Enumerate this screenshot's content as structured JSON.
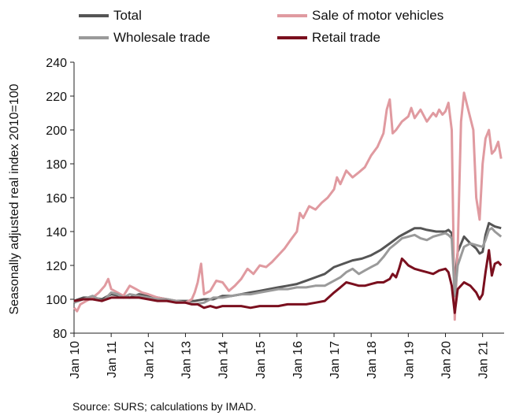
{
  "chart_data": {
    "type": "line",
    "ylabel": "Seasonally adjusted real index 2010=100",
    "ylim": [
      80,
      240
    ],
    "yticks": [
      80,
      100,
      120,
      140,
      160,
      180,
      200,
      220,
      240
    ],
    "xlim": [
      2010,
      2021.58
    ],
    "xticks": [
      {
        "label": "Jan 10",
        "x": 2010
      },
      {
        "label": "Jan 11",
        "x": 2011
      },
      {
        "label": "Jan 12",
        "x": 2012
      },
      {
        "label": "Jan 13",
        "x": 2013
      },
      {
        "label": "Jan 14",
        "x": 2014
      },
      {
        "label": "Jan 15",
        "x": 2015
      },
      {
        "label": "Jan 16",
        "x": 2016
      },
      {
        "label": "Jan 17",
        "x": 2017
      },
      {
        "label": "Jan 18",
        "x": 2018
      },
      {
        "label": "Jan 19",
        "x": 2019
      },
      {
        "label": "Jan 20",
        "x": 2020
      },
      {
        "label": "Jan 21",
        "x": 2021
      }
    ],
    "grid": false,
    "legend_position": "top",
    "series": [
      {
        "name": "Total",
        "color": "#555555",
        "points": [
          [
            2010,
            99
          ],
          [
            2010.25,
            101
          ],
          [
            2010.5,
            101
          ],
          [
            2010.75,
            100
          ],
          [
            2011,
            103
          ],
          [
            2011.25,
            102
          ],
          [
            2011.5,
            101
          ],
          [
            2011.75,
            103
          ],
          [
            2012,
            102
          ],
          [
            2012.25,
            101
          ],
          [
            2012.5,
            100
          ],
          [
            2012.75,
            99
          ],
          [
            2013,
            99
          ],
          [
            2013.25,
            99
          ],
          [
            2013.5,
            100
          ],
          [
            2013.75,
            100
          ],
          [
            2014,
            102
          ],
          [
            2014.25,
            102
          ],
          [
            2014.5,
            103
          ],
          [
            2014.75,
            104
          ],
          [
            2015,
            105
          ],
          [
            2015.25,
            106
          ],
          [
            2015.5,
            107
          ],
          [
            2015.75,
            108
          ],
          [
            2016,
            109
          ],
          [
            2016.25,
            111
          ],
          [
            2016.5,
            113
          ],
          [
            2016.75,
            115
          ],
          [
            2017,
            119
          ],
          [
            2017.25,
            121
          ],
          [
            2017.5,
            123
          ],
          [
            2017.75,
            124
          ],
          [
            2018,
            126
          ],
          [
            2018.25,
            129
          ],
          [
            2018.5,
            133
          ],
          [
            2018.75,
            137
          ],
          [
            2019,
            140
          ],
          [
            2019.17,
            142
          ],
          [
            2019.33,
            142
          ],
          [
            2019.5,
            141
          ],
          [
            2019.75,
            140
          ],
          [
            2020,
            140
          ],
          [
            2020.08,
            141
          ],
          [
            2020.17,
            139
          ],
          [
            2020.25,
            110
          ],
          [
            2020.33,
            128
          ],
          [
            2020.5,
            137
          ],
          [
            2020.67,
            133
          ],
          [
            2020.83,
            130
          ],
          [
            2020.92,
            127
          ],
          [
            2021,
            128
          ],
          [
            2021.08,
            138
          ],
          [
            2021.17,
            145
          ],
          [
            2021.25,
            144
          ],
          [
            2021.33,
            143
          ],
          [
            2021.5,
            142
          ]
        ]
      },
      {
        "name": "Sale of motor vehicles",
        "color": "#e09aa0",
        "points": [
          [
            2010,
            95
          ],
          [
            2010.08,
            93
          ],
          [
            2010.17,
            97
          ],
          [
            2010.33,
            99
          ],
          [
            2010.5,
            101
          ],
          [
            2010.67,
            104
          ],
          [
            2010.83,
            108
          ],
          [
            2010.92,
            112
          ],
          [
            2011,
            106
          ],
          [
            2011.17,
            104
          ],
          [
            2011.33,
            102
          ],
          [
            2011.5,
            108
          ],
          [
            2011.67,
            106
          ],
          [
            2011.83,
            104
          ],
          [
            2012,
            103
          ],
          [
            2012.25,
            101
          ],
          [
            2012.5,
            100
          ],
          [
            2012.75,
            99
          ],
          [
            2013,
            98
          ],
          [
            2013.17,
            100
          ],
          [
            2013.25,
            104
          ],
          [
            2013.33,
            110
          ],
          [
            2013.42,
            121
          ],
          [
            2013.5,
            103
          ],
          [
            2013.67,
            105
          ],
          [
            2013.83,
            111
          ],
          [
            2014,
            110
          ],
          [
            2014.17,
            105
          ],
          [
            2014.33,
            108
          ],
          [
            2014.5,
            112
          ],
          [
            2014.67,
            118
          ],
          [
            2014.83,
            115
          ],
          [
            2015,
            120
          ],
          [
            2015.17,
            119
          ],
          [
            2015.33,
            122
          ],
          [
            2015.5,
            126
          ],
          [
            2015.67,
            130
          ],
          [
            2015.83,
            135
          ],
          [
            2016,
            140
          ],
          [
            2016.08,
            151
          ],
          [
            2016.17,
            148
          ],
          [
            2016.33,
            155
          ],
          [
            2016.5,
            153
          ],
          [
            2016.67,
            157
          ],
          [
            2016.83,
            160
          ],
          [
            2017,
            165
          ],
          [
            2017.08,
            172
          ],
          [
            2017.17,
            168
          ],
          [
            2017.33,
            176
          ],
          [
            2017.5,
            172
          ],
          [
            2017.67,
            175
          ],
          [
            2017.83,
            178
          ],
          [
            2018,
            185
          ],
          [
            2018.17,
            190
          ],
          [
            2018.33,
            198
          ],
          [
            2018.42,
            212
          ],
          [
            2018.5,
            218
          ],
          [
            2018.58,
            198
          ],
          [
            2018.67,
            200
          ],
          [
            2018.83,
            205
          ],
          [
            2019,
            208
          ],
          [
            2019.08,
            213
          ],
          [
            2019.17,
            207
          ],
          [
            2019.33,
            212
          ],
          [
            2019.5,
            205
          ],
          [
            2019.67,
            210
          ],
          [
            2019.75,
            208
          ],
          [
            2019.83,
            212
          ],
          [
            2019.92,
            209
          ],
          [
            2020,
            211
          ],
          [
            2020.08,
            216
          ],
          [
            2020.17,
            200
          ],
          [
            2020.25,
            88
          ],
          [
            2020.33,
            130
          ],
          [
            2020.42,
            205
          ],
          [
            2020.5,
            222
          ],
          [
            2020.58,
            215
          ],
          [
            2020.67,
            207
          ],
          [
            2020.75,
            200
          ],
          [
            2020.83,
            160
          ],
          [
            2020.92,
            147
          ],
          [
            2021,
            180
          ],
          [
            2021.08,
            195
          ],
          [
            2021.17,
            200
          ],
          [
            2021.25,
            186
          ],
          [
            2021.33,
            188
          ],
          [
            2021.42,
            193
          ],
          [
            2021.5,
            183
          ]
        ]
      },
      {
        "name": "Wholesale trade",
        "color": "#9a9a9a",
        "points": [
          [
            2010,
            98
          ],
          [
            2010.25,
            100
          ],
          [
            2010.5,
            102
          ],
          [
            2010.75,
            99
          ],
          [
            2010.83,
            100
          ],
          [
            2011,
            104
          ],
          [
            2011.17,
            103
          ],
          [
            2011.33,
            101
          ],
          [
            2011.5,
            103
          ],
          [
            2011.75,
            102
          ],
          [
            2012,
            101
          ],
          [
            2012.25,
            100
          ],
          [
            2012.5,
            100
          ],
          [
            2012.75,
            99
          ],
          [
            2013,
            98
          ],
          [
            2013.25,
            97
          ],
          [
            2013.5,
            98
          ],
          [
            2013.75,
            101
          ],
          [
            2014,
            101
          ],
          [
            2014.25,
            102
          ],
          [
            2014.5,
            103
          ],
          [
            2014.75,
            103
          ],
          [
            2015,
            104
          ],
          [
            2015.25,
            105
          ],
          [
            2015.5,
            106
          ],
          [
            2015.75,
            106
          ],
          [
            2016,
            107
          ],
          [
            2016.25,
            107
          ],
          [
            2016.5,
            108
          ],
          [
            2016.75,
            108
          ],
          [
            2017,
            111
          ],
          [
            2017.17,
            113
          ],
          [
            2017.33,
            116
          ],
          [
            2017.5,
            118
          ],
          [
            2017.67,
            115
          ],
          [
            2017.83,
            117
          ],
          [
            2018,
            119
          ],
          [
            2018.17,
            121
          ],
          [
            2018.33,
            125
          ],
          [
            2018.5,
            130
          ],
          [
            2018.67,
            133
          ],
          [
            2018.83,
            136
          ],
          [
            2019,
            137
          ],
          [
            2019.17,
            138
          ],
          [
            2019.33,
            136
          ],
          [
            2019.5,
            135
          ],
          [
            2019.67,
            137
          ],
          [
            2019.83,
            138
          ],
          [
            2020,
            139
          ],
          [
            2020.08,
            138
          ],
          [
            2020.17,
            136
          ],
          [
            2020.25,
            102
          ],
          [
            2020.33,
            120
          ],
          [
            2020.5,
            131
          ],
          [
            2020.67,
            133
          ],
          [
            2020.83,
            132
          ],
          [
            2021,
            131
          ],
          [
            2021.08,
            135
          ],
          [
            2021.17,
            141
          ],
          [
            2021.25,
            142
          ],
          [
            2021.33,
            140
          ],
          [
            2021.5,
            137
          ]
        ]
      },
      {
        "name": "Retail trade",
        "color": "#7a0f1e",
        "points": [
          [
            2010,
            99
          ],
          [
            2010.25,
            100
          ],
          [
            2010.5,
            100
          ],
          [
            2010.75,
            99
          ],
          [
            2011,
            101
          ],
          [
            2011.25,
            101
          ],
          [
            2011.5,
            101
          ],
          [
            2011.75,
            101
          ],
          [
            2012,
            100
          ],
          [
            2012.25,
            99
          ],
          [
            2012.5,
            99
          ],
          [
            2012.75,
            98
          ],
          [
            2013,
            98
          ],
          [
            2013.17,
            97
          ],
          [
            2013.33,
            97
          ],
          [
            2013.5,
            95
          ],
          [
            2013.67,
            96
          ],
          [
            2013.83,
            95
          ],
          [
            2014,
            96
          ],
          [
            2014.25,
            96
          ],
          [
            2014.5,
            96
          ],
          [
            2014.75,
            95
          ],
          [
            2015,
            96
          ],
          [
            2015.25,
            96
          ],
          [
            2015.5,
            96
          ],
          [
            2015.75,
            97
          ],
          [
            2016,
            97
          ],
          [
            2016.25,
            97
          ],
          [
            2016.5,
            98
          ],
          [
            2016.75,
            99
          ],
          [
            2017,
            104
          ],
          [
            2017.17,
            107
          ],
          [
            2017.33,
            110
          ],
          [
            2017.5,
            109
          ],
          [
            2017.67,
            108
          ],
          [
            2017.83,
            108
          ],
          [
            2018,
            109
          ],
          [
            2018.17,
            110
          ],
          [
            2018.33,
            110
          ],
          [
            2018.5,
            112
          ],
          [
            2018.58,
            115
          ],
          [
            2018.67,
            113
          ],
          [
            2018.75,
            118
          ],
          [
            2018.83,
            124
          ],
          [
            2018.92,
            122
          ],
          [
            2019,
            120
          ],
          [
            2019.17,
            118
          ],
          [
            2019.33,
            117
          ],
          [
            2019.5,
            116
          ],
          [
            2019.67,
            115
          ],
          [
            2019.83,
            117
          ],
          [
            2020,
            118
          ],
          [
            2020.08,
            116
          ],
          [
            2020.17,
            108
          ],
          [
            2020.25,
            92
          ],
          [
            2020.33,
            106
          ],
          [
            2020.5,
            110
          ],
          [
            2020.67,
            108
          ],
          [
            2020.83,
            104
          ],
          [
            2020.92,
            100
          ],
          [
            2021,
            103
          ],
          [
            2021.08,
            116
          ],
          [
            2021.17,
            129
          ],
          [
            2021.25,
            114
          ],
          [
            2021.33,
            121
          ],
          [
            2021.42,
            122
          ],
          [
            2021.5,
            120
          ]
        ]
      }
    ]
  },
  "source_note": "Source: SURS; calculations by IMAD."
}
